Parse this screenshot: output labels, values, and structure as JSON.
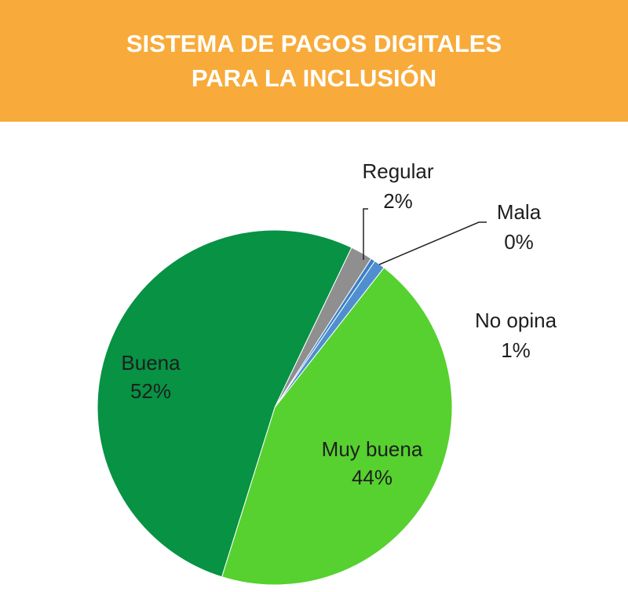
{
  "header": {
    "title_line1": "SISTEMA DE PAGOS DIGITALES",
    "title_line2": "PARA LA INCLUSIÓN"
  },
  "chart_data": {
    "type": "pie",
    "title": "SISTEMA DE PAGOS DIGITALES PARA LA INCLUSIÓN",
    "slices": [
      {
        "name": "Muy buena",
        "label": "44%",
        "value": 44,
        "color": "#56d12f"
      },
      {
        "name": "Buena",
        "label": "52%",
        "value": 52,
        "color": "#079244"
      },
      {
        "name": "Regular",
        "label": "2%",
        "value": 2,
        "color": "#8f8f8f"
      },
      {
        "name": "Mala",
        "label": "0%",
        "value": 0.4,
        "color": "#3c7fc6"
      },
      {
        "name": "No opina",
        "label": "1%",
        "value": 1,
        "color": "#4f8fd0"
      }
    ],
    "legend": "none"
  },
  "colors": {
    "header_bg": "#f8ab3a",
    "header_text": "#ffffff"
  }
}
